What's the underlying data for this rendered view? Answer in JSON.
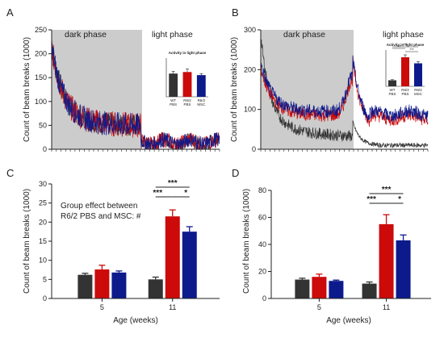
{
  "colors": {
    "wt": "#333333",
    "r62_pbs": "#cc0a0a",
    "r62_msc": "#0d1a8c",
    "shade": "#cccccc"
  },
  "chart_data": [
    {
      "panel": "A",
      "type": "line",
      "ylabel": "Count of beam breaks (1000)",
      "ylim": [
        0,
        250
      ],
      "yticks": [
        "0",
        "50",
        "100",
        "150",
        "200",
        "250"
      ],
      "shaded_label": "dark phase",
      "unshaded_label": "light phase",
      "series_note": "high-frequency activity traces, ~3 overlapping groups",
      "trace_approx": {
        "peak_start": 200,
        "dark_mean_end": 45,
        "light_mean": 15
      },
      "inset": {
        "type": "bar",
        "title": "Activity in light phase",
        "categories": [
          "WT PBS",
          "R6/2 PBS",
          "R6/2 MSC"
        ],
        "values": [
          15,
          16,
          14
        ],
        "errors": [
          1.5,
          2.0,
          1.0
        ]
      }
    },
    {
      "panel": "B",
      "type": "line",
      "ylabel": "Count of beam breaks (1000)",
      "ylim": [
        0,
        300
      ],
      "yticks": [
        "0",
        "100",
        "200",
        "300"
      ],
      "shaded_label": "dark phase",
      "unshaded_label": "light phase",
      "trace_approx": {
        "wt_dark_end": 25,
        "r62_pbs_plateau": 85,
        "r62_msc_plateau": 95,
        "peak_at_transition": 180
      },
      "inset": {
        "type": "bar",
        "title": "Activity in light phase",
        "categories": [
          "WT PBS",
          "R6/2 PBS",
          "R6/2 MSC"
        ],
        "values": [
          10,
          48,
          38
        ],
        "errors": [
          1.0,
          4.0,
          3.0
        ],
        "significance": [
          "***",
          "***",
          "***"
        ]
      }
    },
    {
      "panel": "C",
      "type": "bar",
      "xlabel": "Age (weeks)",
      "ylabel": "Count of beam breaks (1000)",
      "ylim": [
        0,
        30
      ],
      "yticks": [
        "0",
        "5",
        "10",
        "15",
        "20",
        "25",
        "30"
      ],
      "categories": [
        "5",
        "11"
      ],
      "series": [
        {
          "color_key": "wt",
          "values": [
            6.2,
            5.0
          ],
          "errors": [
            0.4,
            0.6
          ]
        },
        {
          "color_key": "r62_pbs",
          "values": [
            7.6,
            21.5
          ],
          "errors": [
            1.1,
            1.7
          ]
        },
        {
          "color_key": "r62_msc",
          "values": [
            6.8,
            17.5
          ],
          "errors": [
            0.4,
            1.3
          ]
        }
      ],
      "annotation": [
        "Group effect between",
        "R6/2 PBS and MSC: #"
      ],
      "significance": {
        "wt_vs_pbs": "***",
        "wt_vs_msc": "***",
        "pbs_vs_msc": "*"
      }
    },
    {
      "panel": "D",
      "type": "bar",
      "xlabel": "Age (weeks)",
      "ylabel": "Count of beam breaks (1000)",
      "ylim": [
        0,
        80
      ],
      "yticks": [
        "0",
        "20",
        "40",
        "60",
        "80"
      ],
      "categories": [
        "5",
        "11"
      ],
      "series": [
        {
          "color_key": "wt",
          "values": [
            14.0,
            11.0
          ],
          "errors": [
            1.0,
            1.2
          ]
        },
        {
          "color_key": "r62_pbs",
          "values": [
            16.0,
            55.0
          ],
          "errors": [
            2.0,
            7.0
          ]
        },
        {
          "color_key": "r62_msc",
          "values": [
            13.0,
            43.0
          ],
          "errors": [
            0.6,
            4.0
          ]
        }
      ],
      "significance": {
        "wt_vs_pbs": "***",
        "wt_vs_msc": "***",
        "pbs_vs_msc": "*"
      }
    }
  ]
}
